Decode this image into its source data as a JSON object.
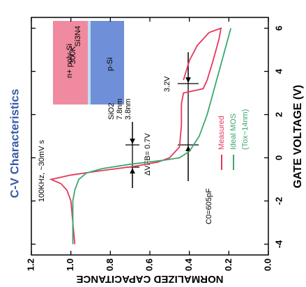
{
  "chart_data": {
    "type": "line",
    "title": "C-V Characteristics",
    "x_label": "GATE VOLTAGE (V)",
    "y_label": "NORMALIZED CAPACITANCE",
    "xlim": [
      -4.5,
      6.5
    ],
    "xticks": [
      -4,
      -2,
      0,
      2,
      4,
      6
    ],
    "ylim": [
      0,
      1.2
    ],
    "yticks": [
      {
        "value": 0,
        "label": "0.0"
      },
      0.2,
      0.4,
      0.6,
      0.8,
      {
        "value": 1.0,
        "label": "1.0"
      },
      1.2
    ],
    "series": [
      {
        "name": "Measured",
        "color": "#e8365a",
        "x": [
          -4,
          -3,
          -2,
          -1.5,
          -1.2,
          -1,
          -0.8,
          -0.6,
          -0.4,
          -0.2,
          0,
          0.5,
          1.5,
          2.5,
          3.0,
          3.2,
          3.6,
          4.5,
          5.5,
          6.0,
          5.8,
          5.2,
          4.5,
          3.6
        ],
        "values": [
          0.98,
          0.99,
          1.0,
          1.02,
          1.05,
          1.1,
          1.0,
          0.85,
          0.68,
          0.56,
          0.5,
          0.45,
          0.44,
          0.44,
          0.43,
          0.33,
          0.31,
          0.28,
          0.25,
          0.24,
          0.3,
          0.36,
          0.4,
          0.43
        ]
      },
      {
        "name": "Ideal MOS",
        "color": "#3aa86a",
        "x": [
          -4,
          -3,
          -2,
          -1.5,
          -1,
          -0.7,
          -0.5,
          -0.3,
          -0.1,
          0,
          0.3,
          1,
          2,
          3,
          4,
          5,
          6
        ],
        "values": [
          0.99,
          0.99,
          0.99,
          0.98,
          0.96,
          0.92,
          0.84,
          0.7,
          0.52,
          0.45,
          0.4,
          0.35,
          0.31,
          0.28,
          0.25,
          0.22,
          0.19
        ]
      }
    ],
    "annotations": {
      "conditions": "100KHz, ~30mV s",
      "temperature": "300K",
      "oxide_note": "(Tox~14nm)",
      "c0": "C0=605pF",
      "shift_voltage": "3.2V",
      "flatband_shift": "ΔVFB= 0.7V",
      "inset": {
        "gate": "n+ poly-Si",
        "substrate": "p-Si",
        "nitride": "Si3N4",
        "oxide": "SiO2",
        "oxide_thickness": "7.8nm",
        "interface_thickness": "3.8nm"
      }
    }
  }
}
